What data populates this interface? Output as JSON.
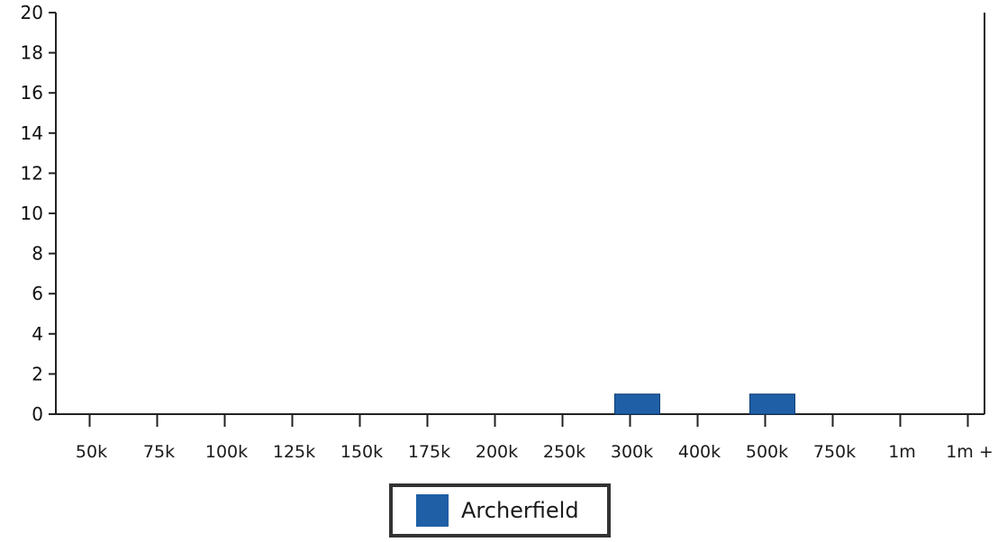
{
  "chart_data": {
    "type": "bar",
    "categories": [
      "50k",
      "75k",
      "100k",
      "125k",
      "150k",
      "175k",
      "200k",
      "250k",
      "300k",
      "400k",
      "500k",
      "750k",
      "1m",
      "1m +"
    ],
    "series": [
      {
        "name": "Archerfield",
        "values": [
          0,
          0,
          0,
          0,
          0,
          0,
          0,
          0,
          1,
          0,
          1,
          0,
          0,
          0
        ],
        "color": "#1f5fa6"
      }
    ],
    "ylim": [
      0,
      20
    ],
    "yticks": [
      0,
      2,
      4,
      6,
      8,
      10,
      12,
      14,
      16,
      18,
      20
    ],
    "grid": false,
    "legend": "bottom-center"
  }
}
